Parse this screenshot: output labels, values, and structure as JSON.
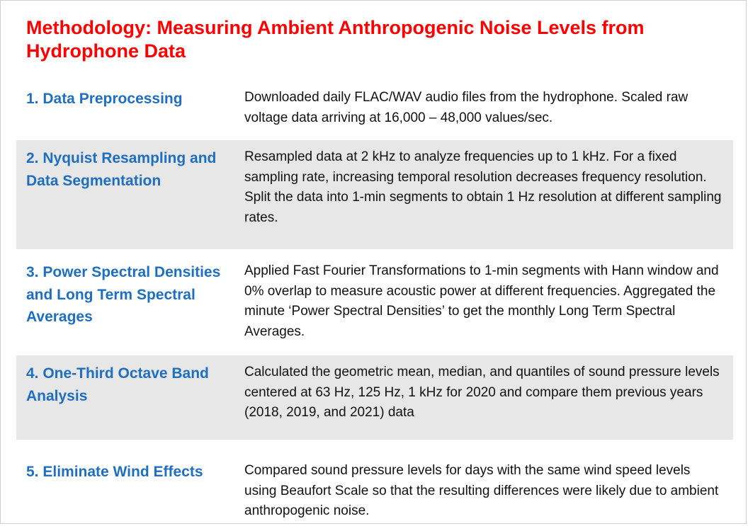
{
  "title": "Methodology: Measuring Ambient Anthropogenic Noise Levels from Hydrophone Data",
  "steps": [
    {
      "label": "1. Data Preprocessing",
      "description": "Downloaded daily FLAC/WAV audio files from the hydrophone. Scaled raw voltage data arriving at 16,000 – 48,000 values/sec."
    },
    {
      "label": "2. Nyquist Resampling and Data Segmentation",
      "description": "Resampled data at 2 kHz to analyze frequencies up to 1 kHz. For a fixed sampling rate, increasing temporal resolution decreases frequency resolution. Split the data into 1-min segments to obtain 1 Hz resolution at different sampling rates."
    },
    {
      "label": "3. Power Spectral Densities and Long Term Spectral Averages",
      "description": "Applied Fast Fourier Transformations to 1-min segments with Hann window and 0% overlap to measure acoustic power at different frequencies. Aggregated the minute ‘Power Spectral Densities’ to get the monthly Long Term Spectral Averages."
    },
    {
      "label": "4. One-Third Octave Band Analysis",
      "description": "Calculated the geometric mean, median, and quantiles of sound pressure levels centered at  63 Hz, 125 Hz, 1 kHz for 2020 and compare them previous years (2018, 2019, and 2021) data"
    },
    {
      "label": "5. Eliminate Wind Effects",
      "description": "Compared sound pressure levels for days with the same wind speed levels using Beaufort Scale so that the resulting differences were likely due to ambient anthropogenic noise."
    }
  ],
  "colors": {
    "title": "#ff0000",
    "label": "#1f6fc0",
    "shade": "#e7e7e7",
    "text": "#111111"
  }
}
